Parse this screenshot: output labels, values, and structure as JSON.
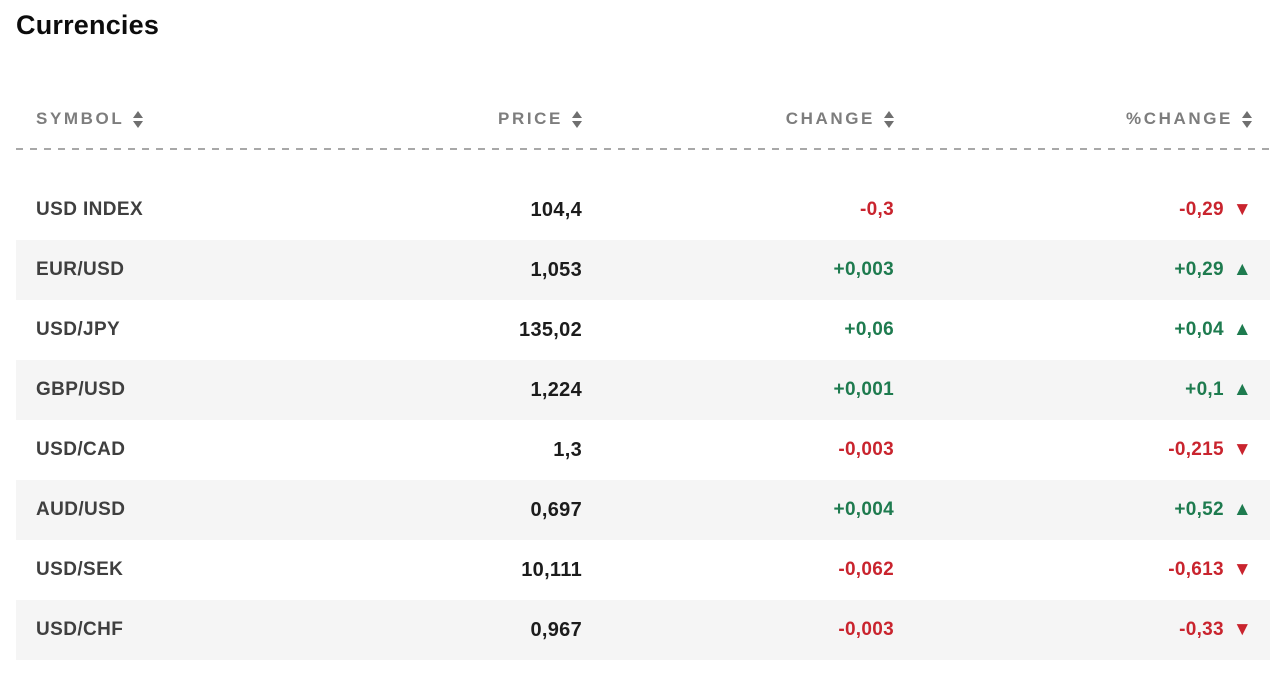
{
  "title": "Currencies",
  "table": {
    "columns": [
      {
        "key": "symbol",
        "label": "SYMBOL"
      },
      {
        "key": "price",
        "label": "PRICE"
      },
      {
        "key": "change",
        "label": "CHANGE"
      },
      {
        "key": "pct_change",
        "label": "%CHANGE"
      }
    ],
    "rows": [
      {
        "symbol": "USD INDEX",
        "price": "104,4",
        "change": "-0,3",
        "pct_change": "-0,29",
        "direction": "down"
      },
      {
        "symbol": "EUR/USD",
        "price": "1,053",
        "change": "+0,003",
        "pct_change": "+0,29",
        "direction": "up"
      },
      {
        "symbol": "USD/JPY",
        "price": "135,02",
        "change": "+0,06",
        "pct_change": "+0,04",
        "direction": "up"
      },
      {
        "symbol": "GBP/USD",
        "price": "1,224",
        "change": "+0,001",
        "pct_change": "+0,1",
        "direction": "up"
      },
      {
        "symbol": "USD/CAD",
        "price": "1,3",
        "change": "-0,003",
        "pct_change": "-0,215",
        "direction": "down"
      },
      {
        "symbol": "AUD/USD",
        "price": "0,697",
        "change": "+0,004",
        "pct_change": "+0,52",
        "direction": "up"
      },
      {
        "symbol": "USD/SEK",
        "price": "10,111",
        "change": "-0,062",
        "pct_change": "-0,613",
        "direction": "down"
      },
      {
        "symbol": "USD/CHF",
        "price": "0,967",
        "change": "-0,003",
        "pct_change": "-0,33",
        "direction": "down"
      }
    ]
  },
  "icons": {
    "sort": "sort-arrows",
    "up_arrow": "▲",
    "down_arrow": "▼"
  },
  "colors": {
    "positive": "#1e7b4f",
    "negative": "#c9242e",
    "header_text": "#7d7d7d",
    "row_alt_bg": "#f5f5f5",
    "title_text": "#0c0c0c",
    "symbol_text": "#3f3f3f",
    "price_text": "#1c1c1c"
  }
}
